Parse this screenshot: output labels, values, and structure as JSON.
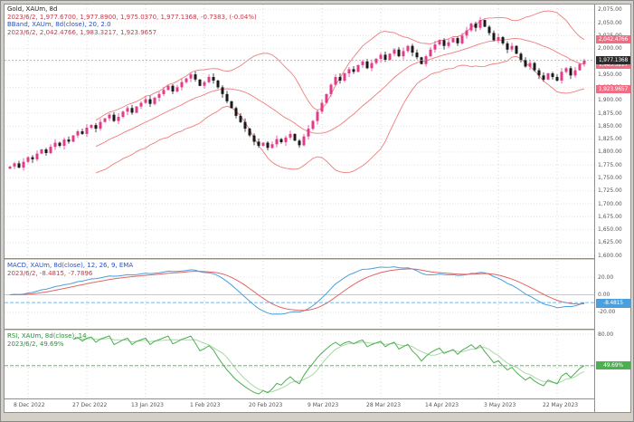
{
  "window": {
    "bg": "#d4d0c8"
  },
  "main_pane": {
    "title": "Gold, XAUm, 8d",
    "ohlc_line": "2023/6/2, 1,977.6700, 1,977.8900, 1,975.0370, 1,977.1368, -0.7383, (-0.04%)",
    "bband_title": "BBand, XAUm, 8d(close), 20, 2.0",
    "bband_values": "2023/6/2, 2,042.4766, 1,983.3217, 1,923.9657",
    "axis_ticks": [
      2075,
      2050,
      2025,
      2000,
      1975,
      1950,
      1925,
      1900,
      1875,
      1850,
      1825,
      1800,
      1775,
      1750,
      1725,
      1700,
      1675,
      1650,
      1625,
      1600
    ],
    "price_boxes": [
      {
        "name": "upper-band-price-box",
        "label": "2,042.4766",
        "bg": "#ef6e85",
        "fg": "#ffffff"
      },
      {
        "name": "middle-band-price-box",
        "label": "1,983.3217",
        "bg": "#ef6e85",
        "fg": "#ffffff"
      },
      {
        "name": "lower-band-price-box",
        "label": "1,923.9657",
        "bg": "#ef6e85",
        "fg": "#ffffff"
      },
      {
        "name": "last-price-box",
        "label": "1,977.1368",
        "bg": "#2b2b2b",
        "fg": "#ffffff"
      }
    ]
  },
  "macd_pane": {
    "title": "MACD, XAUm, 8d(close), 12, 26, 9, EMA",
    "values_line": "2023/6/2, -8.4815, -7.7896",
    "axis_ticks": [
      20,
      0,
      -20
    ],
    "value_boxes": [
      {
        "name": "macd-value-box",
        "label": "-8.4815",
        "bg": "#4a9fdc",
        "fg": "#ffffff"
      },
      {
        "name": "macd-signal-box",
        "label": "-7.7896",
        "bg": "#e06666",
        "fg": "#ffffff"
      }
    ]
  },
  "rsi_pane": {
    "title": "RSI, XAUm, 8d(close), 14",
    "values_line": "2023/6/2, 49.69%",
    "axis_ticks": [
      80,
      50,
      20
    ],
    "value_boxes": [
      {
        "name": "rsi-value-box",
        "label": "49.69%",
        "bg": "#4caf50",
        "fg": "#ffffff"
      }
    ]
  },
  "time_axis": {
    "labels": [
      {
        "index": 4,
        "text": "8 Dec 2022"
      },
      {
        "index": 17,
        "text": "27 Dec 2022"
      },
      {
        "index": 30,
        "text": "13 Jan 2023"
      },
      {
        "index": 43,
        "text": "1 Feb 2023"
      },
      {
        "index": 56,
        "text": "20 Feb 2023"
      },
      {
        "index": 69,
        "text": "9 Mar 2023"
      },
      {
        "index": 82,
        "text": "28 Mar 2023"
      },
      {
        "index": 95,
        "text": "14 Apr 2023"
      },
      {
        "index": 108,
        "text": "3 May 2023"
      },
      {
        "index": 121,
        "text": "22 May 2023"
      }
    ]
  },
  "colors": {
    "candle_up": "#e23b8c",
    "candle_down": "#1a1a1a",
    "bollinger": "#ef7d7d",
    "macd_line": "#4a9fdc",
    "macd_signal": "#e06666",
    "rsi_line": "#4caf50",
    "rsi_smooth": "#a8d8a8"
  },
  "chart_data": {
    "type": "candlestick",
    "title": "Gold, XAUm, 8d",
    "last_bar": {
      "date": "2023/6/2",
      "open": 1977.67,
      "high": 1977.89,
      "low": 1975.037,
      "close": 1977.1368,
      "change": -0.7383,
      "change_pct": "-0.04%"
    },
    "price_axis_range": [
      1595,
      2085
    ],
    "x_axis_labels": [
      "8 Dec 2022",
      "27 Dec 2022",
      "13 Jan 2023",
      "1 Feb 2023",
      "20 Feb 2023",
      "9 Mar 2023",
      "28 Mar 2023",
      "14 Apr 2023",
      "3 May 2023",
      "22 May 2023"
    ],
    "close_series": [
      1772,
      1778,
      1770,
      1781,
      1790,
      1786,
      1797,
      1805,
      1798,
      1810,
      1818,
      1812,
      1824,
      1820,
      1832,
      1840,
      1835,
      1847,
      1852,
      1845,
      1858,
      1865,
      1872,
      1860,
      1868,
      1878,
      1885,
      1876,
      1888,
      1895,
      1902,
      1893,
      1905,
      1912,
      1920,
      1928,
      1917,
      1925,
      1935,
      1942,
      1950,
      1940,
      1928,
      1935,
      1945,
      1938,
      1925,
      1912,
      1898,
      1885,
      1870,
      1858,
      1845,
      1832,
      1820,
      1812,
      1818,
      1808,
      1815,
      1825,
      1819,
      1828,
      1835,
      1822,
      1813,
      1830,
      1845,
      1860,
      1878,
      1895,
      1912,
      1930,
      1945,
      1938,
      1952,
      1960,
      1955,
      1968,
      1975,
      1962,
      1972,
      1980,
      1988,
      1978,
      1990,
      1998,
      1985,
      1995,
      2005,
      1992,
      1983,
      1970,
      1985,
      1998,
      2008,
      2016,
      2005,
      2012,
      2020,
      2010,
      2025,
      2035,
      2048,
      2040,
      2055,
      2042,
      2030,
      2016,
      2022,
      2010,
      1998,
      2005,
      1990,
      1978,
      1965,
      1972,
      1958,
      1948,
      1940,
      1952,
      1945,
      1938,
      1955,
      1962,
      1948,
      1958,
      1970,
      1977.14
    ],
    "indicators": {
      "bollinger": {
        "period": 20,
        "deviations": 2.0,
        "upper": 2042.4766,
        "middle": 1983.3217,
        "lower": 1923.9657
      },
      "macd": {
        "fast": 12,
        "slow": 26,
        "signal_period": 9,
        "macd": -8.4815,
        "signal": -7.7896
      },
      "rsi": {
        "period": 14,
        "value_pct": 49.69
      }
    }
  }
}
